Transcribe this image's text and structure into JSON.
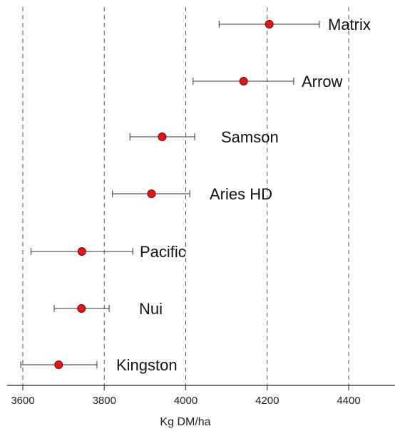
{
  "chart_data": {
    "type": "scatter",
    "subtype": "dot-with-error-bars",
    "xlabel": "Kg DM/ha",
    "xlim": [
      3580,
      4520
    ],
    "xticks": [
      3600,
      3800,
      4000,
      4200,
      4400
    ],
    "grid": "vertical dashed at ticks",
    "marker_color": "#e01818",
    "series": [
      {
        "points": [
          {
            "label": "Matrix",
            "value": 4205,
            "low": 4082,
            "high": 4328
          },
          {
            "label": "Arrow",
            "value": 4142,
            "low": 4018,
            "high": 4265
          },
          {
            "label": "Samson",
            "value": 3942,
            "low": 3863,
            "high": 4022
          },
          {
            "label": "Aries HD",
            "value": 3916,
            "low": 3820,
            "high": 4010
          },
          {
            "label": "Pacific",
            "value": 3745,
            "low": 3620,
            "high": 3870
          },
          {
            "label": "Nui",
            "value": 3744,
            "low": 3677,
            "high": 3812
          },
          {
            "label": "Kingston",
            "value": 3688,
            "low": 3595,
            "high": 3782
          }
        ]
      }
    ]
  }
}
